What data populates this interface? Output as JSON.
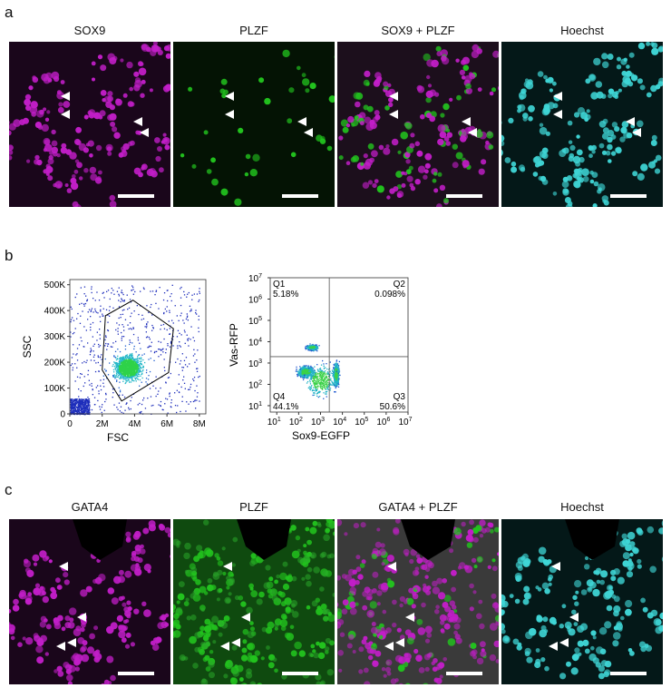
{
  "panels": {
    "a": {
      "letter": "a",
      "captions": [
        "SOX9",
        "PLZF",
        "SOX9 + PLZF",
        "Hoechst"
      ]
    },
    "b": {
      "letter": "b"
    },
    "c": {
      "letter": "c",
      "captions": [
        "GATA4",
        "PLZF",
        "GATA4 + PLZF",
        "Hoechst"
      ]
    }
  },
  "colors": {
    "magenta": "#c21ec8",
    "green": "#22c31e",
    "cyan": "#3fd6d6",
    "dark": "#0b050b"
  },
  "chart_data": [
    {
      "type": "scatter",
      "xlabel": "FSC",
      "ylabel": "SSC",
      "x_ticks": [
        "0",
        "2M",
        "4M",
        "6M",
        "8M"
      ],
      "y_ticks": [
        "0",
        "100K",
        "200K",
        "300K",
        "400K",
        "500K"
      ],
      "xlim": [
        0,
        8400000
      ],
      "ylim": [
        0,
        520000
      ],
      "gate": "polygon"
    },
    {
      "type": "scatter",
      "xlabel": "Sox9-EGFP",
      "ylabel": "Vas-RFP",
      "scale": "log",
      "x_ticks": [
        "10",
        "10",
        "10",
        "10",
        "10",
        "10",
        "10"
      ],
      "x_tick_exponents": [
        "1",
        "2",
        "3",
        "4",
        "5",
        "6",
        "7"
      ],
      "y_ticks": [
        "10",
        "10",
        "10",
        "10",
        "10",
        "10",
        "10"
      ],
      "y_tick_exponents": [
        "1",
        "2",
        "3",
        "4",
        "5",
        "6",
        "7"
      ],
      "quadrants": [
        {
          "name": "Q1",
          "percent": "5.18%"
        },
        {
          "name": "Q2",
          "percent": "0.098%"
        },
        {
          "name": "Q3",
          "percent": "50.6%"
        },
        {
          "name": "Q4",
          "percent": "44.1%"
        }
      ]
    }
  ]
}
